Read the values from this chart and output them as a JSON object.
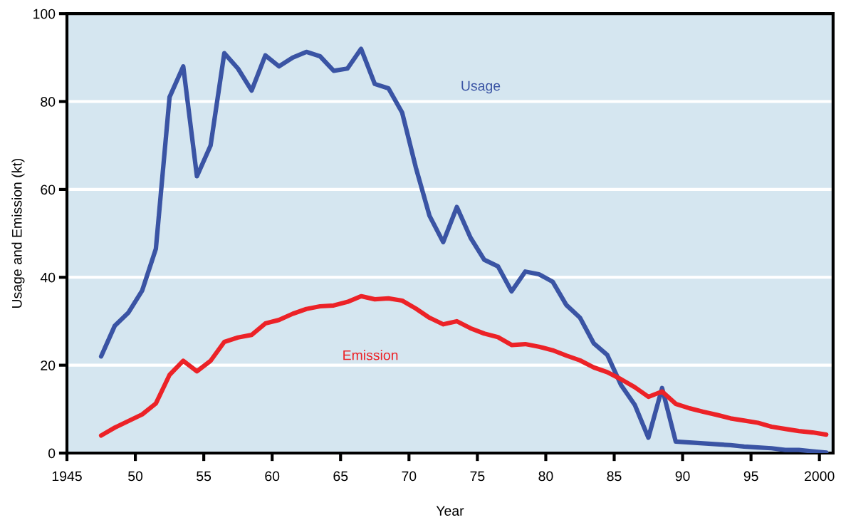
{
  "chart_data": {
    "type": "line",
    "xlabel": "Year",
    "ylabel": "Usage and Emission (kt)",
    "x": [
      1947.5,
      1948.5,
      1949.5,
      1950.5,
      1951.5,
      1952.5,
      1953.5,
      1954.5,
      1955.5,
      1956.5,
      1957.5,
      1958.5,
      1959.5,
      1960.5,
      1961.5,
      1962.5,
      1963.5,
      1964.5,
      1965.5,
      1966.5,
      1967.5,
      1968.5,
      1969.5,
      1970.5,
      1971.5,
      1972.5,
      1973.5,
      1974.5,
      1975.5,
      1976.5,
      1977.5,
      1978.5,
      1979.5,
      1980.5,
      1981.5,
      1982.5,
      1983.5,
      1984.5,
      1985.5,
      1986.5,
      1987.5,
      1988.5,
      1989.5,
      1990.5,
      1991.5,
      1992.5,
      1993.5,
      1994.5,
      1995.5,
      1996.5,
      1997.5,
      1998.5,
      1999.5,
      2000.5
    ],
    "series": [
      {
        "name": "Usage",
        "color": "#3a54a4",
        "values": [
          22,
          29,
          32,
          37,
          46.5,
          81,
          88,
          63,
          70,
          91,
          87.5,
          82.5,
          90.5,
          88,
          90,
          91.3,
          90.3,
          87,
          87.5,
          92,
          84,
          83,
          77.5,
          65,
          54,
          48,
          56,
          49,
          44,
          42.5,
          36.8,
          41.3,
          40.7,
          39,
          33.7,
          30.8,
          25,
          22.3,
          15.5,
          11,
          3.5,
          14.8,
          2.6,
          2.4,
          2.2,
          2.0,
          1.8,
          1.5,
          1.3,
          1.1,
          0.7,
          0.7,
          0.4,
          0.1
        ]
      },
      {
        "name": "Emission",
        "color": "#ec2227",
        "values": [
          4,
          5.8,
          7.3,
          8.8,
          11.3,
          17.8,
          21,
          18.6,
          21,
          25.3,
          26.3,
          26.9,
          29.5,
          30.3,
          31.7,
          32.8,
          33.4,
          33.6,
          34.4,
          35.7,
          35.0,
          35.2,
          34.7,
          32.9,
          30.8,
          29.3,
          30.0,
          28.4,
          27.2,
          26.4,
          24.6,
          24.8,
          24.2,
          23.4,
          22.2,
          21.1,
          19.5,
          18.4,
          16.8,
          15.0,
          12.8,
          14.0,
          11.2,
          10.2,
          9.4,
          8.7,
          7.9,
          7.4,
          6.9,
          6.0,
          5.5,
          5.0,
          4.7,
          4.2
        ]
      }
    ],
    "xlim": [
      1945,
      2001
    ],
    "xticks": [
      1945,
      {
        "value": 1950,
        "label": "50"
      },
      {
        "value": 1955,
        "label": "55"
      },
      {
        "value": 1960,
        "label": "60"
      },
      {
        "value": 1965,
        "label": "65"
      },
      {
        "value": 1970,
        "label": "70"
      },
      {
        "value": 1975,
        "label": "75"
      },
      {
        "value": 1980,
        "label": "80"
      },
      {
        "value": 1985,
        "label": "85"
      },
      {
        "value": 1990,
        "label": "90"
      },
      {
        "value": 1995,
        "label": "95"
      },
      2000
    ],
    "ylim": [
      0,
      100
    ],
    "yticks": [
      0,
      20,
      40,
      60,
      80,
      100
    ],
    "grid": "y",
    "legend": false,
    "marker": "none",
    "line_style": "solid"
  }
}
